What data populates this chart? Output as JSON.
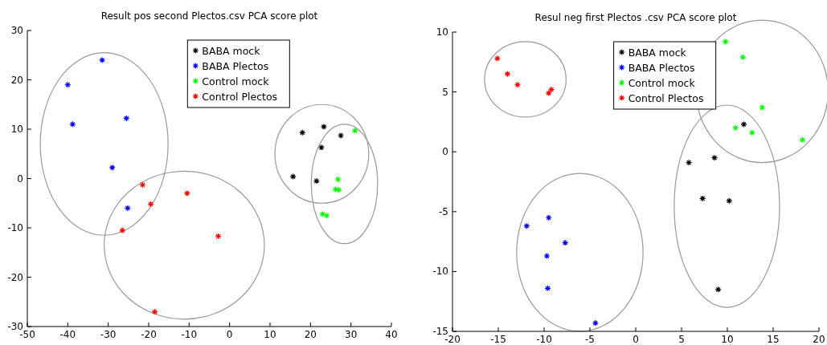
{
  "chart_data": [
    {
      "type": "scatter",
      "title": "Result pos second Plectos.csv PCA score plot",
      "marker": "cross",
      "legend": "top",
      "grid": false,
      "xlim": [
        -50,
        40
      ],
      "xticks": [
        -50,
        -40,
        -30,
        -20,
        -10,
        0,
        10,
        20,
        30,
        40
      ],
      "ylim": [
        -30,
        30
      ],
      "yticks": [
        -30,
        -20,
        -10,
        0,
        10,
        20,
        30
      ],
      "series": [
        {
          "name": "BABA mock",
          "color": "#000000",
          "x": [
            15.7,
            18,
            23.3,
            22.7,
            27.5,
            21.5
          ],
          "values": [
            0.4,
            9.3,
            10.5,
            6.3,
            8.7,
            -0.5
          ]
        },
        {
          "name": "BABA Plectos",
          "color": "#0000ff",
          "x": [
            -40,
            -38.8,
            -31.5,
            -25.5,
            -29,
            -25.2
          ],
          "values": [
            19,
            11,
            24,
            12.2,
            2.2,
            -6
          ]
        },
        {
          "name": "Control mock",
          "color": "#00ff00",
          "x": [
            31,
            26.8,
            26.2,
            27,
            23,
            24
          ],
          "values": [
            9.7,
            -0.2,
            -2.2,
            -2.3,
            -7.2,
            -7.5
          ]
        },
        {
          "name": "Control Plectos",
          "color": "#ff0000",
          "x": [
            -21.5,
            -19.5,
            -10.5,
            -2.8,
            -26.5,
            -18.5
          ],
          "values": [
            -1.3,
            -5.2,
            -3,
            -11.7,
            -10.5,
            -27
          ]
        }
      ]
    },
    {
      "type": "scatter",
      "title": "Resul neg first Plectos .csv PCA score plot",
      "marker": "cross",
      "legend": "top",
      "grid": false,
      "xlim": [
        -20,
        20
      ],
      "xticks": [
        -20,
        -15,
        -10,
        -5,
        0,
        5,
        10,
        15,
        20
      ],
      "ylim": [
        -15,
        10
      ],
      "yticks": [
        -15,
        -10,
        -5,
        0,
        5,
        10
      ],
      "series": [
        {
          "name": "BABA mock",
          "color": "#000000",
          "x": [
            11.8,
            8.6,
            5.8,
            7.3,
            10.2,
            9.0
          ],
          "values": [
            2.3,
            -0.5,
            -0.9,
            -3.9,
            -4.1,
            -11.5
          ]
        },
        {
          "name": "BABA Plectos",
          "color": "#0000ff",
          "x": [
            -11.9,
            -9.5,
            -7.7,
            -9.7,
            -9.6,
            -4.4
          ],
          "values": [
            -6.2,
            -5.5,
            -7.6,
            -8.7,
            -11.4,
            -14.3
          ]
        },
        {
          "name": "Control mock",
          "color": "#00ff00",
          "x": [
            9.8,
            11.7,
            13.8,
            10.9,
            12.7,
            18.2
          ],
          "values": [
            9.2,
            7.9,
            3.7,
            2.0,
            1.6,
            1.0
          ]
        },
        {
          "name": "Control Plectos",
          "color": "#ff0000",
          "x": [
            -15.1,
            -14.0,
            -12.9,
            -9.5,
            -9.2
          ],
          "values": [
            7.8,
            6.5,
            5.6,
            4.9,
            5.2
          ]
        }
      ]
    }
  ]
}
